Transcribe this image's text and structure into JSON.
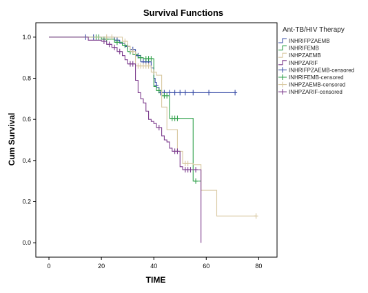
{
  "chart_data": {
    "type": "line",
    "title": "Survival Functions",
    "xlabel": "TIME",
    "ylabel": "Cum Survival",
    "xlim": [
      -5,
      87
    ],
    "ylim": [
      -0.07,
      1.07
    ],
    "x_ticks": [
      0,
      20,
      40,
      60,
      80
    ],
    "y_ticks": [
      0.0,
      0.2,
      0.4,
      0.6,
      0.8,
      1.0
    ],
    "x_tick_labels": [
      "0",
      "20",
      "40",
      "60",
      "80"
    ],
    "y_tick_labels": [
      "0.0",
      "0.2",
      "0.4",
      "0.6",
      "0.8",
      "1.0"
    ],
    "grid": false,
    "legend": {
      "title": "Ant-TB/HIV Therapy",
      "placement": "right",
      "entries": [
        "INHRIFPZAEMB",
        "INHRIFEMB",
        "INHPZAEMB",
        "INHPZARIF",
        "INHRIFPZAEMB-censored",
        "INHRIFEMB-censored",
        "INHPZAEMB-censored",
        "INHPZARIF-censored"
      ]
    },
    "series": [
      {
        "name": "INHRIFPZAEMB",
        "color": "#3b4fa8",
        "steps": [
          [
            0,
            1.0
          ],
          [
            25,
            0.985
          ],
          [
            27,
            0.97
          ],
          [
            29,
            0.955
          ],
          [
            31,
            0.94
          ],
          [
            33,
            0.91
          ],
          [
            35,
            0.88
          ],
          [
            39,
            0.85
          ],
          [
            40,
            0.8
          ],
          [
            40.5,
            0.78
          ],
          [
            41,
            0.755
          ],
          [
            42,
            0.73
          ],
          [
            71,
            0.73
          ]
        ],
        "censored": [
          [
            14,
            1.0
          ],
          [
            17,
            1.0
          ],
          [
            26,
            0.985
          ],
          [
            30,
            0.955
          ],
          [
            32,
            0.94
          ],
          [
            34,
            0.91
          ],
          [
            36,
            0.88
          ],
          [
            37,
            0.88
          ],
          [
            38,
            0.88
          ],
          [
            41,
            0.765
          ],
          [
            42.5,
            0.73
          ],
          [
            44,
            0.73
          ],
          [
            46,
            0.73
          ],
          [
            48,
            0.73
          ],
          [
            50,
            0.73
          ],
          [
            52,
            0.73
          ],
          [
            55,
            0.73
          ],
          [
            61,
            0.73
          ],
          [
            71,
            0.73
          ]
        ]
      },
      {
        "name": "INHRIFEMB",
        "color": "#2fa04a",
        "steps": [
          [
            0,
            1.0
          ],
          [
            20,
            0.99
          ],
          [
            25,
            0.975
          ],
          [
            28,
            0.96
          ],
          [
            30,
            0.93
          ],
          [
            32,
            0.915
          ],
          [
            34,
            0.9
          ],
          [
            36,
            0.895
          ],
          [
            40,
            0.76
          ],
          [
            41,
            0.74
          ],
          [
            43,
            0.715
          ],
          [
            46,
            0.605
          ],
          [
            55,
            0.3
          ],
          [
            58,
            0.3
          ]
        ],
        "censored": [
          [
            18,
            1.0
          ],
          [
            19,
            1.0
          ],
          [
            21,
            0.99
          ],
          [
            22,
            0.99
          ],
          [
            26,
            0.975
          ],
          [
            29,
            0.96
          ],
          [
            31,
            0.93
          ],
          [
            33,
            0.915
          ],
          [
            35,
            0.9
          ],
          [
            37,
            0.895
          ],
          [
            38,
            0.895
          ],
          [
            39,
            0.895
          ],
          [
            42,
            0.74
          ],
          [
            44,
            0.715
          ],
          [
            45,
            0.715
          ],
          [
            47,
            0.605
          ],
          [
            48,
            0.605
          ],
          [
            49,
            0.605
          ],
          [
            56,
            0.3
          ]
        ]
      },
      {
        "name": "INHPZAEMB",
        "color": "#d8c8a0",
        "steps": [
          [
            0,
            1.0
          ],
          [
            28,
            0.98
          ],
          [
            30,
            0.955
          ],
          [
            31,
            0.93
          ],
          [
            33,
            0.86
          ],
          [
            39,
            0.83
          ],
          [
            41,
            0.815
          ],
          [
            43,
            0.66
          ],
          [
            45,
            0.55
          ],
          [
            49,
            0.445
          ],
          [
            51,
            0.385
          ],
          [
            55,
            0.38
          ],
          [
            58,
            0.255
          ],
          [
            64,
            0.13
          ],
          [
            79,
            0.13
          ]
        ],
        "censored": [
          [
            22,
            1.0
          ],
          [
            24,
            1.0
          ],
          [
            29,
            0.98
          ],
          [
            32,
            0.93
          ],
          [
            34,
            0.86
          ],
          [
            35,
            0.86
          ],
          [
            36,
            0.86
          ],
          [
            37,
            0.86
          ],
          [
            38,
            0.86
          ],
          [
            40,
            0.83
          ],
          [
            52,
            0.385
          ],
          [
            53,
            0.385
          ],
          [
            79,
            0.13
          ]
        ]
      },
      {
        "name": "INHPZARIF",
        "color": "#7b3a8c",
        "steps": [
          [
            0,
            1.0
          ],
          [
            15,
            0.985
          ],
          [
            20,
            0.98
          ],
          [
            22,
            0.965
          ],
          [
            24,
            0.95
          ],
          [
            26,
            0.93
          ],
          [
            28,
            0.91
          ],
          [
            29,
            0.89
          ],
          [
            30,
            0.87
          ],
          [
            33,
            0.79
          ],
          [
            34,
            0.73
          ],
          [
            35,
            0.7
          ],
          [
            36,
            0.68
          ],
          [
            37,
            0.64
          ],
          [
            38,
            0.6
          ],
          [
            39,
            0.59
          ],
          [
            40,
            0.58
          ],
          [
            41,
            0.56
          ],
          [
            43,
            0.52
          ],
          [
            44,
            0.5
          ],
          [
            45,
            0.49
          ],
          [
            46,
            0.46
          ],
          [
            47,
            0.445
          ],
          [
            50,
            0.37
          ],
          [
            51,
            0.355
          ],
          [
            58,
            0.0
          ]
        ],
        "censored": [
          [
            21,
            0.98
          ],
          [
            23,
            0.965
          ],
          [
            25,
            0.95
          ],
          [
            27,
            0.93
          ],
          [
            31,
            0.87
          ],
          [
            32,
            0.87
          ],
          [
            42,
            0.56
          ],
          [
            48,
            0.445
          ],
          [
            49,
            0.445
          ],
          [
            52,
            0.355
          ],
          [
            53,
            0.355
          ],
          [
            54,
            0.355
          ],
          [
            56,
            0.355
          ]
        ]
      }
    ]
  }
}
